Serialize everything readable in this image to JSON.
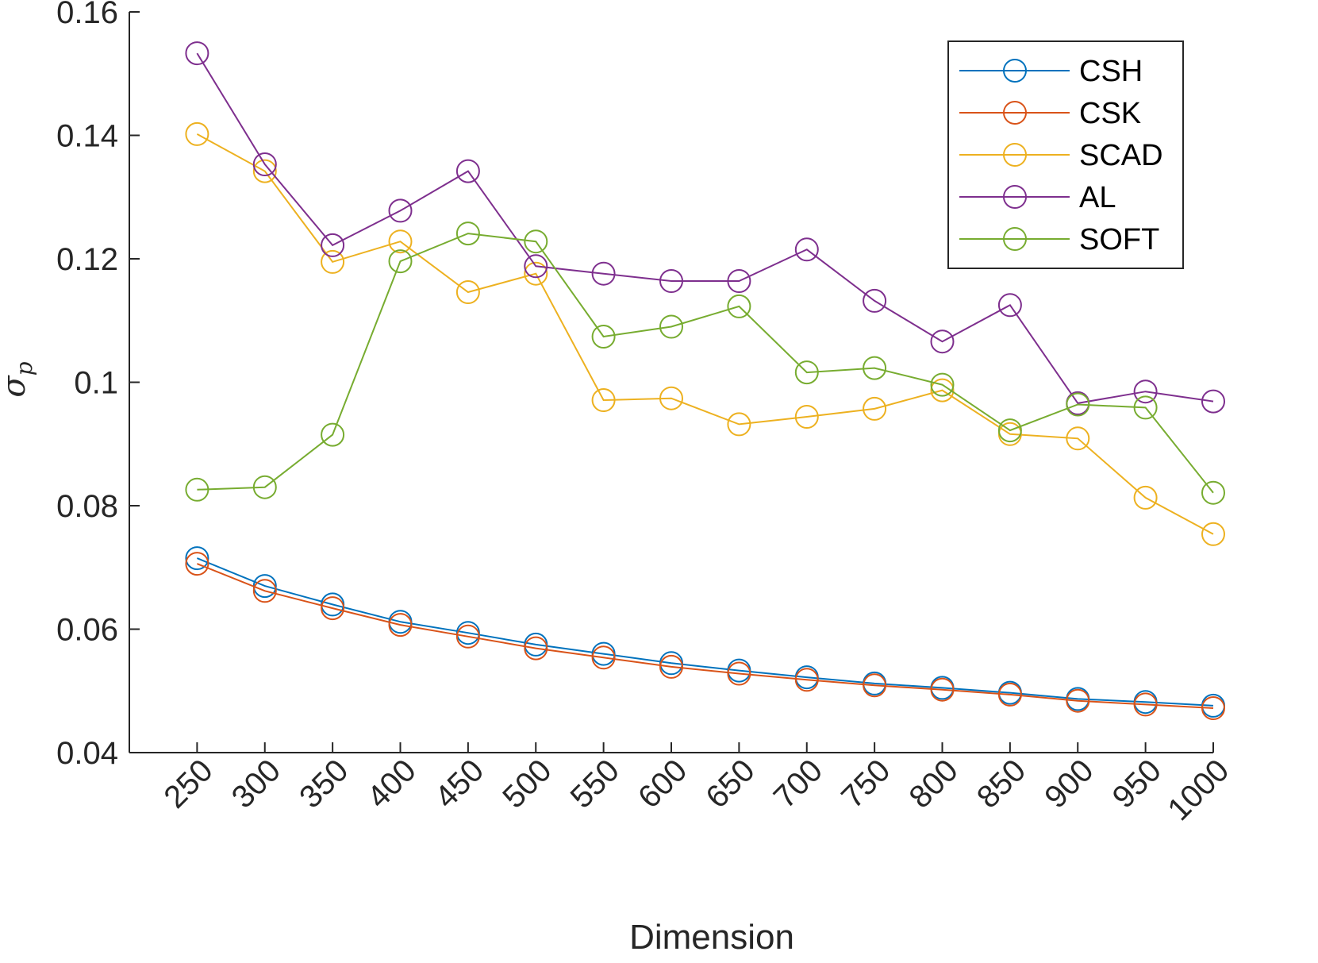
{
  "chart_data": {
    "type": "line",
    "title": "",
    "xlabel": "Dimension",
    "ylabel": "σ",
    "ylabel_subscript": "p",
    "x": [
      250,
      300,
      350,
      400,
      450,
      500,
      550,
      600,
      650,
      700,
      750,
      800,
      850,
      900,
      950,
      1000
    ],
    "x_tick_labels": [
      "250",
      "300",
      "350",
      "400",
      "450",
      "500",
      "550",
      "600",
      "650",
      "700",
      "750",
      "800",
      "850",
      "900",
      "950",
      "1000"
    ],
    "yticks": [
      0.04,
      0.06,
      0.08,
      0.1,
      0.12,
      0.14,
      0.16
    ],
    "y_tick_labels": [
      "0.04",
      "0.06",
      "0.08",
      "0.1",
      "0.12",
      "0.14",
      "0.16"
    ],
    "ylim": [
      0.04,
      0.16
    ],
    "xlim": [
      200,
      1000
    ],
    "grid": false,
    "legend_position": "top-right",
    "marker": "circle",
    "series": [
      {
        "name": "CSH",
        "color": "#0072BD",
        "values": [
          0.0715,
          0.067,
          0.064,
          0.0612,
          0.0594,
          0.0575,
          0.056,
          0.0545,
          0.0533,
          0.0522,
          0.0512,
          0.0505,
          0.0497,
          0.0487,
          0.0482,
          0.0476
        ]
      },
      {
        "name": "CSK",
        "color": "#D95319",
        "values": [
          0.0706,
          0.0662,
          0.0634,
          0.0607,
          0.0588,
          0.0569,
          0.0554,
          0.0539,
          0.0528,
          0.0518,
          0.0509,
          0.0502,
          0.0494,
          0.0484,
          0.0478,
          0.0472
        ]
      },
      {
        "name": "SCAD",
        "color": "#EDB120",
        "values": [
          0.1402,
          0.1342,
          0.1195,
          0.1228,
          0.1146,
          0.1176,
          0.0971,
          0.0974,
          0.0932,
          0.0944,
          0.0957,
          0.0987,
          0.0916,
          0.0909,
          0.0813,
          0.0754
        ]
      },
      {
        "name": "AL",
        "color": "#7E2F8E",
        "values": [
          0.1533,
          0.1353,
          0.1222,
          0.1278,
          0.1342,
          0.1188,
          0.1176,
          0.1164,
          0.1164,
          0.1215,
          0.1132,
          0.1066,
          0.1125,
          0.0966,
          0.0985,
          0.0969
        ]
      },
      {
        "name": "SOFT",
        "color": "#77AC30",
        "values": [
          0.0826,
          0.083,
          0.0915,
          0.1196,
          0.1241,
          0.1228,
          0.1074,
          0.109,
          0.1123,
          0.1016,
          0.1023,
          0.0996,
          0.0922,
          0.0964,
          0.0959,
          0.0821
        ]
      }
    ]
  }
}
